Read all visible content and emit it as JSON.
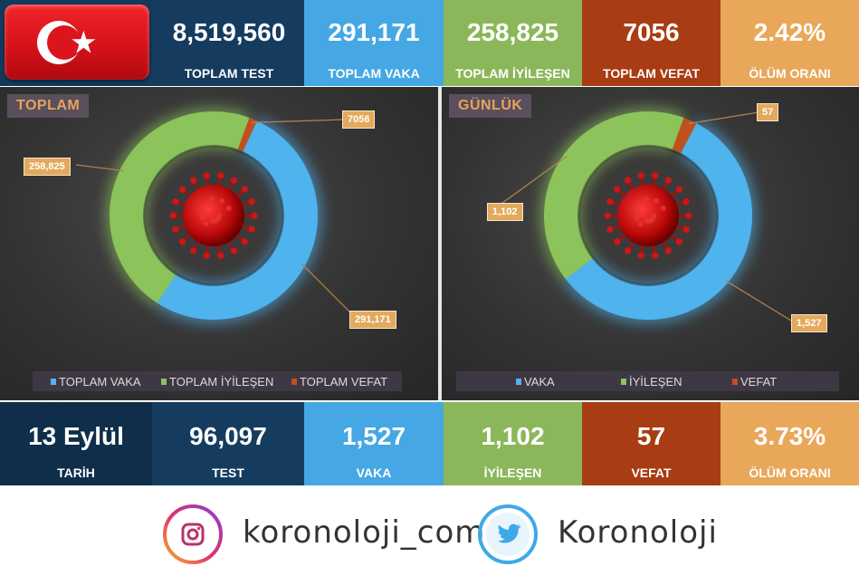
{
  "header_stats": [
    {
      "value": "8,519,560",
      "label": "TOPLAM TEST",
      "color": "#153c5f"
    },
    {
      "value": "291,171",
      "label": "TOPLAM VAKA",
      "color": "#45a7e3"
    },
    {
      "value": "258,825",
      "label": "TOPLAM İYİLEŞEN",
      "color": "#8bb75a"
    },
    {
      "value": "7056",
      "label": "TOPLAM VEFAT",
      "color": "#a83c12"
    },
    {
      "value": "2.42%",
      "label": "ÖLÜM ORANI",
      "color": "#e9a75a"
    }
  ],
  "panels": {
    "total": {
      "title": "TOPLAM",
      "legend": [
        "TOPLAM VAKA",
        "TOPLAM İYİLEŞEN",
        "TOPLAM VEFAT"
      ]
    },
    "daily": {
      "title": "GÜNLÜK",
      "legend": [
        "VAKA",
        "İYİLEŞEN",
        "VEFAT"
      ]
    }
  },
  "chart_data": [
    {
      "type": "pie",
      "title": "TOPLAM",
      "categories": [
        "TOPLAM VAKA",
        "TOPLAM İYİLEŞEN",
        "TOPLAM VEFAT"
      ],
      "values": [
        291171,
        258825,
        7056
      ],
      "labels": [
        "291,171",
        "258,825",
        "7056"
      ],
      "colors": [
        "#4fb3ee",
        "#8cc35a",
        "#c0501e"
      ],
      "legend": "bottom"
    },
    {
      "type": "pie",
      "title": "GÜNLÜK",
      "categories": [
        "VAKA",
        "İYİLEŞEN",
        "VEFAT"
      ],
      "values": [
        1527,
        1102,
        57
      ],
      "labels": [
        "1,527",
        "1,102",
        "57"
      ],
      "colors": [
        "#4fb3ee",
        "#8cc35a",
        "#c0501e"
      ],
      "legend": "bottom"
    }
  ],
  "footer_stats": [
    {
      "value": "13 Eylül",
      "label": "TARİH",
      "color": "#0f2e4a"
    },
    {
      "value": "96,097",
      "label": "TEST",
      "color": "#153c5f"
    },
    {
      "value": "1,527",
      "label": "VAKA",
      "color": "#45a7e3"
    },
    {
      "value": "1,102",
      "label": "İYİLEŞEN",
      "color": "#8bb75a"
    },
    {
      "value": "57",
      "label": "VEFAT",
      "color": "#a83c12"
    },
    {
      "value": "3.73%",
      "label": "ÖLÜM ORANI",
      "color": "#e9a75a"
    }
  ],
  "social": {
    "instagram_handle": "koronoloji_com",
    "twitter_handle": "Koronoloji"
  },
  "icons": {
    "flag": "turkey-flag-icon",
    "virus": "virus-icon",
    "instagram": "instagram-icon",
    "twitter": "twitter-bird-icon"
  }
}
